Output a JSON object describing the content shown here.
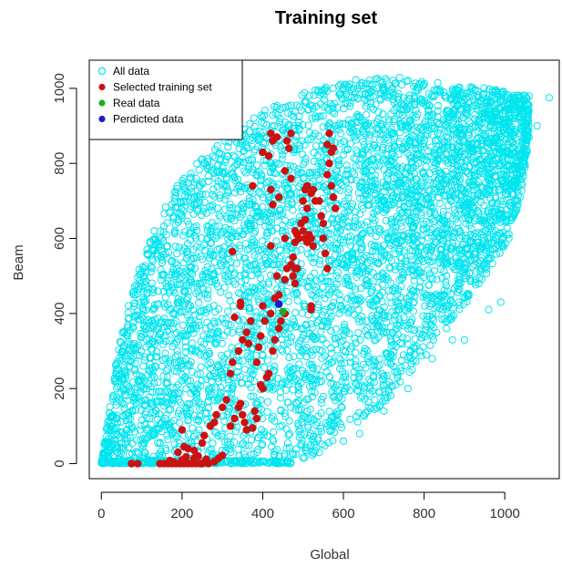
{
  "chart_data": {
    "type": "scatter",
    "title": "Training set",
    "xlabel": "Global",
    "ylabel": "Beam",
    "xlim": [
      -30,
      1135
    ],
    "ylim": [
      -40,
      1075
    ],
    "xticks": [
      0,
      200,
      400,
      600,
      800,
      1000
    ],
    "yticks": [
      0,
      200,
      400,
      600,
      800,
      1000
    ],
    "grid": false,
    "legend_position": "top-left",
    "legend": [
      {
        "label": "All data",
        "color": "#00e5ee",
        "marker": "open-circle"
      },
      {
        "label": "Selected training set",
        "color": "#cc1111",
        "marker": "filled-circle"
      },
      {
        "label": "Real data",
        "color": "#22aa22",
        "marker": "filled-circle"
      },
      {
        "label": "Perdicted data",
        "color": "#1a1acc",
        "marker": "filled-circle"
      }
    ],
    "series": [
      {
        "name": "All data",
        "style": "open-circle",
        "color": "#00e5ee",
        "region": {
          "lower_envelope": [
            [
              0,
              0
            ],
            [
              120,
              0
            ],
            [
              300,
              0
            ],
            [
              460,
              0
            ],
            [
              520,
              20
            ],
            [
              600,
              80
            ],
            [
              700,
              160
            ],
            [
              800,
              280
            ],
            [
              900,
              420
            ],
            [
              1000,
              580
            ],
            [
              1040,
              700
            ],
            [
              1060,
              860
            ]
          ],
          "upper_envelope": [
            [
              0,
              0
            ],
            [
              40,
              300
            ],
            [
              80,
              480
            ],
            [
              130,
              620
            ],
            [
              180,
              730
            ],
            [
              250,
              820
            ],
            [
              320,
              880
            ],
            [
              400,
              940
            ],
            [
              480,
              990
            ],
            [
              560,
              1010
            ],
            [
              660,
              1030
            ],
            [
              760,
              1030
            ],
            [
              860,
              1010
            ],
            [
              960,
              1000
            ],
            [
              1060,
              980
            ]
          ]
        },
        "outliers": [
          [
            1110,
            975
          ],
          [
            1080,
            900
          ],
          [
            1060,
            870
          ],
          [
            990,
            430
          ],
          [
            960,
            410
          ],
          [
            950,
            520
          ],
          [
            900,
            330
          ],
          [
            870,
            330
          ],
          [
            820,
            280
          ],
          [
            760,
            200
          ],
          [
            700,
            140
          ],
          [
            640,
            80
          ],
          [
            600,
            60
          ],
          [
            540,
            30
          ],
          [
            500,
            15
          ],
          [
            1040,
            820
          ],
          [
            1030,
            770
          ],
          [
            1020,
            720
          ],
          [
            1000,
            660
          ],
          [
            1050,
            790
          ],
          [
            1010,
            600
          ]
        ]
      },
      {
        "name": "Selected training set",
        "style": "filled-circle",
        "color": "#cc1111",
        "points": [
          [
            75,
            0
          ],
          [
            90,
            0
          ],
          [
            145,
            0
          ],
          [
            155,
            0
          ],
          [
            165,
            0
          ],
          [
            175,
            0
          ],
          [
            185,
            0
          ],
          [
            195,
            0
          ],
          [
            205,
            0
          ],
          [
            215,
            0
          ],
          [
            225,
            0
          ],
          [
            235,
            0
          ],
          [
            245,
            0
          ],
          [
            250,
            0
          ],
          [
            265,
            0
          ],
          [
            280,
            5
          ],
          [
            170,
            8
          ],
          [
            180,
            4
          ],
          [
            200,
            10
          ],
          [
            210,
            18
          ],
          [
            230,
            15
          ],
          [
            240,
            20
          ],
          [
            260,
            12
          ],
          [
            290,
            14
          ],
          [
            300,
            22
          ],
          [
            190,
            30
          ],
          [
            205,
            45
          ],
          [
            215,
            40
          ],
          [
            230,
            35
          ],
          [
            250,
            55
          ],
          [
            255,
            75
          ],
          [
            200,
            90
          ],
          [
            270,
            100
          ],
          [
            280,
            110
          ],
          [
            285,
            130
          ],
          [
            300,
            150
          ],
          [
            310,
            170
          ],
          [
            320,
            100
          ],
          [
            330,
            120
          ],
          [
            340,
            150
          ],
          [
            345,
            160
          ],
          [
            350,
            130
          ],
          [
            355,
            110
          ],
          [
            360,
            90
          ],
          [
            375,
            95
          ],
          [
            380,
            140
          ],
          [
            385,
            120
          ],
          [
            395,
            210
          ],
          [
            400,
            200
          ],
          [
            410,
            230
          ],
          [
            415,
            240
          ],
          [
            320,
            240
          ],
          [
            325,
            270
          ],
          [
            340,
            300
          ],
          [
            350,
            330
          ],
          [
            360,
            350
          ],
          [
            365,
            320
          ],
          [
            370,
            380
          ],
          [
            385,
            270
          ],
          [
            390,
            310
          ],
          [
            395,
            340
          ],
          [
            400,
            420
          ],
          [
            405,
            380
          ],
          [
            425,
            300
          ],
          [
            430,
            330
          ],
          [
            440,
            360
          ],
          [
            445,
            380
          ],
          [
            455,
            400
          ],
          [
            420,
            400
          ],
          [
            330,
            390
          ],
          [
            345,
            420
          ],
          [
            325,
            565
          ],
          [
            345,
            430
          ],
          [
            375,
            740
          ],
          [
            400,
            830
          ],
          [
            415,
            820
          ],
          [
            420,
            880
          ],
          [
            425,
            860
          ],
          [
            435,
            870
          ],
          [
            455,
            780
          ],
          [
            460,
            860
          ],
          [
            465,
            840
          ],
          [
            470,
            880
          ],
          [
            420,
            730
          ],
          [
            440,
            710
          ],
          [
            470,
            760
          ],
          [
            475,
            550
          ],
          [
            480,
            590
          ],
          [
            485,
            610
          ],
          [
            490,
            600
          ],
          [
            495,
            640
          ],
          [
            500,
            620
          ],
          [
            505,
            600
          ],
          [
            510,
            590
          ],
          [
            515,
            610
          ],
          [
            520,
            600
          ],
          [
            525,
            580
          ],
          [
            475,
            500
          ],
          [
            480,
            480
          ],
          [
            455,
            490
          ],
          [
            460,
            520
          ],
          [
            470,
            530
          ],
          [
            485,
            520
          ],
          [
            505,
            650
          ],
          [
            510,
            680
          ],
          [
            520,
            720
          ],
          [
            525,
            730
          ],
          [
            530,
            700
          ],
          [
            540,
            700
          ],
          [
            545,
            660
          ],
          [
            550,
            600
          ],
          [
            555,
            560
          ],
          [
            560,
            520
          ],
          [
            560,
            770
          ],
          [
            565,
            800
          ],
          [
            570,
            740
          ],
          [
            575,
            710
          ],
          [
            580,
            680
          ],
          [
            560,
            850
          ],
          [
            565,
            880
          ],
          [
            570,
            830
          ],
          [
            575,
            840
          ],
          [
            520,
            410
          ],
          [
            520,
            420
          ],
          [
            430,
            440
          ],
          [
            440,
            450
          ],
          [
            480,
            520
          ],
          [
            420,
            580
          ],
          [
            425,
            690
          ],
          [
            455,
            600
          ],
          [
            435,
            500
          ],
          [
            505,
            730
          ],
          [
            510,
            740
          ],
          [
            500,
            700
          ],
          [
            550,
            640
          ],
          [
            480,
            620
          ]
        ]
      },
      {
        "name": "Real data",
        "style": "filled-circle",
        "color": "#22aa22",
        "points": [
          [
            450,
            405
          ]
        ]
      },
      {
        "name": "Perdicted data",
        "style": "filled-circle",
        "color": "#1a1acc",
        "points": [
          [
            440,
            425
          ]
        ]
      }
    ]
  }
}
